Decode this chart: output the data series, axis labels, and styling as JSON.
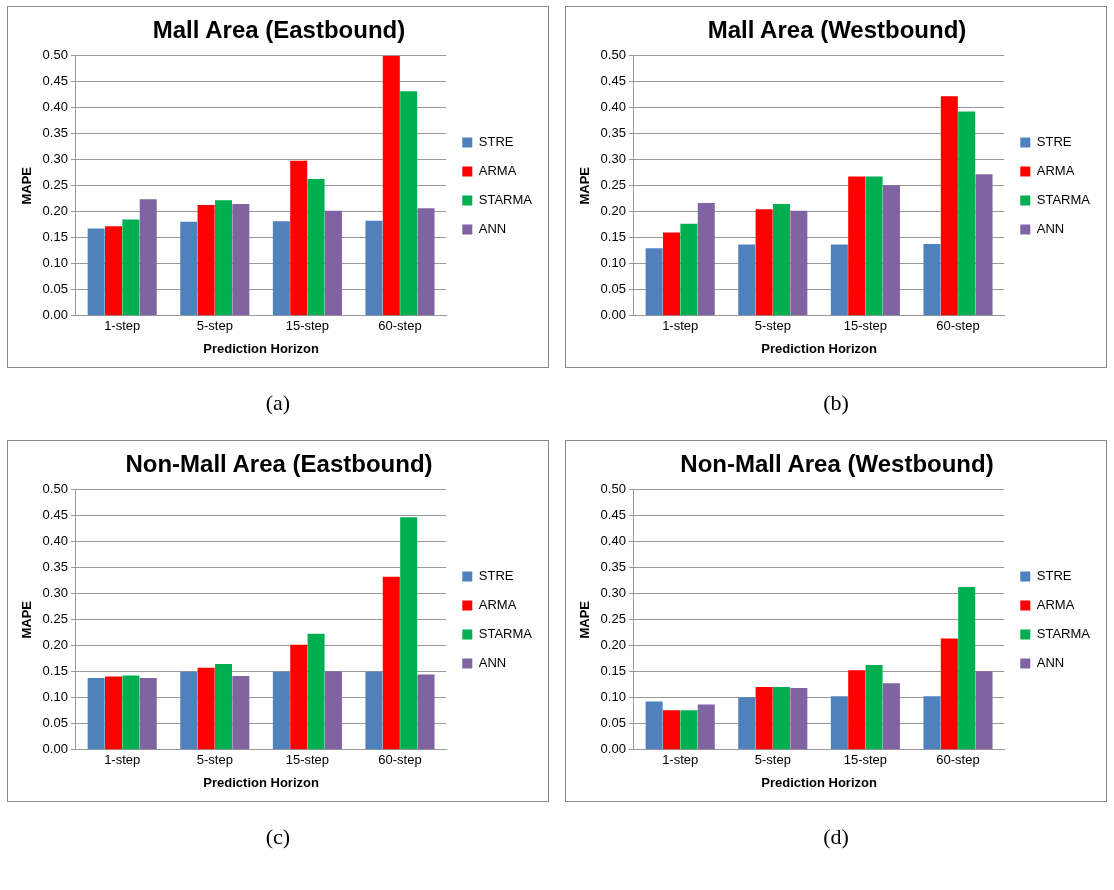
{
  "chart_data": [
    {
      "type": "bar",
      "title": "Mall Area (Eastbound)",
      "xlabel": "Prediction Horizon",
      "ylabel": "MAPE",
      "categories": [
        "1-step",
        "5-step",
        "15-step",
        "60-step"
      ],
      "series": [
        {
          "name": "STRE",
          "color": "#4f81bd",
          "values": [
            0.168,
            0.181,
            0.182,
            0.183
          ]
        },
        {
          "name": "ARMA",
          "color": "#ff0000",
          "values": [
            0.172,
            0.213,
            0.298,
            0.5
          ]
        },
        {
          "name": "STARMA",
          "color": "#00b050",
          "values": [
            0.185,
            0.222,
            0.263,
            0.432
          ]
        },
        {
          "name": "ANN",
          "color": "#8064a2",
          "values": [
            0.224,
            0.215,
            0.202,
            0.207
          ]
        }
      ],
      "ylim": [
        0,
        0.5
      ],
      "yticks": [
        {
          "value": 0,
          "label": "0.00"
        },
        {
          "value": 0.05,
          "label": "0.05"
        },
        {
          "value": 0.1,
          "label": "0.10"
        },
        {
          "value": 0.15,
          "label": "0.15"
        },
        {
          "value": 0.2,
          "label": "0.20"
        },
        {
          "value": 0.25,
          "label": "0.25"
        },
        {
          "value": 0.3,
          "label": "0.30"
        },
        {
          "value": 0.35,
          "label": "0.35"
        },
        {
          "value": 0.4,
          "label": "0.40"
        },
        {
          "value": 0.45,
          "label": "0.45"
        },
        {
          "value": 0.5,
          "label": "0.50"
        }
      ],
      "grid": "y",
      "legend": "right",
      "annotations": [
        "(a)"
      ]
    },
    {
      "type": "bar",
      "title": "Mall Area (Westbound)",
      "xlabel": "Prediction Horizon",
      "ylabel": "MAPE",
      "categories": [
        "1-step",
        "5-step",
        "15-step",
        "60-step"
      ],
      "series": [
        {
          "name": "STRE",
          "color": "#4f81bd",
          "values": [
            0.13,
            0.137,
            0.137,
            0.138
          ]
        },
        {
          "name": "ARMA",
          "color": "#ff0000",
          "values": [
            0.16,
            0.205,
            0.268,
            0.422
          ]
        },
        {
          "name": "STARMA",
          "color": "#00b050",
          "values": [
            0.177,
            0.215,
            0.268,
            0.393
          ]
        },
        {
          "name": "ANN",
          "color": "#8064a2",
          "values": [
            0.217,
            0.202,
            0.251,
            0.272
          ]
        }
      ],
      "ylim": [
        0,
        0.5
      ],
      "yticks": [
        {
          "value": 0,
          "label": "0.00"
        },
        {
          "value": 0.05,
          "label": "0.05"
        },
        {
          "value": 0.1,
          "label": "0.10"
        },
        {
          "value": 0.15,
          "label": "0.15"
        },
        {
          "value": 0.2,
          "label": "0.20"
        },
        {
          "value": 0.25,
          "label": "0.25"
        },
        {
          "value": 0.3,
          "label": "0.30"
        },
        {
          "value": 0.35,
          "label": "0.35"
        },
        {
          "value": 0.4,
          "label": "0.40"
        },
        {
          "value": 0.45,
          "label": "0.45"
        },
        {
          "value": 0.5,
          "label": "0.50"
        }
      ],
      "grid": "y",
      "legend": "right",
      "annotations": [
        "(b)"
      ]
    },
    {
      "type": "bar",
      "title": "Non-Mall Area (Eastbound)",
      "xlabel": "Prediction Horizon",
      "ylabel": "MAPE",
      "categories": [
        "1-step",
        "5-step",
        "15-step",
        "60-step"
      ],
      "series": [
        {
          "name": "STRE",
          "color": "#4f81bd",
          "values": [
            0.138,
            0.15,
            0.15,
            0.15
          ]
        },
        {
          "name": "ARMA",
          "color": "#ff0000",
          "values": [
            0.141,
            0.158,
            0.202,
            0.333
          ]
        },
        {
          "name": "STARMA",
          "color": "#00b050",
          "values": [
            0.143,
            0.165,
            0.223,
            0.447
          ]
        },
        {
          "name": "ANN",
          "color": "#8064a2",
          "values": [
            0.138,
            0.142,
            0.151,
            0.145
          ]
        }
      ],
      "ylim": [
        0,
        0.5
      ],
      "yticks": [
        {
          "value": 0,
          "label": "0.00"
        },
        {
          "value": 0.05,
          "label": "0.05"
        },
        {
          "value": 0.1,
          "label": "0.10"
        },
        {
          "value": 0.15,
          "label": "0.15"
        },
        {
          "value": 0.2,
          "label": "0.20"
        },
        {
          "value": 0.25,
          "label": "0.25"
        },
        {
          "value": 0.3,
          "label": "0.30"
        },
        {
          "value": 0.35,
          "label": "0.35"
        },
        {
          "value": 0.4,
          "label": "0.40"
        },
        {
          "value": 0.45,
          "label": "0.45"
        },
        {
          "value": 0.5,
          "label": "0.50"
        }
      ],
      "grid": "y",
      "legend": "right",
      "annotations": [
        "(c)"
      ]
    },
    {
      "type": "bar",
      "title": "Non-Mall Area (Westbound)",
      "xlabel": "Prediction Horizon",
      "ylabel": "MAPE",
      "categories": [
        "1-step",
        "5-step",
        "15-step",
        "60-step"
      ],
      "series": [
        {
          "name": "STRE",
          "color": "#4f81bd",
          "values": [
            0.093,
            0.101,
            0.103,
            0.103
          ]
        },
        {
          "name": "ARMA",
          "color": "#ff0000",
          "values": [
            0.076,
            0.121,
            0.153,
            0.214
          ]
        },
        {
          "name": "STARMA",
          "color": "#00b050",
          "values": [
            0.076,
            0.121,
            0.163,
            0.313
          ]
        },
        {
          "name": "ANN",
          "color": "#8064a2",
          "values": [
            0.087,
            0.119,
            0.128,
            0.151
          ]
        }
      ],
      "ylim": [
        0,
        0.5
      ],
      "yticks": [
        {
          "value": 0,
          "label": "0.00"
        },
        {
          "value": 0.05,
          "label": "0.05"
        },
        {
          "value": 0.1,
          "label": "0.10"
        },
        {
          "value": 0.15,
          "label": "0.15"
        },
        {
          "value": 0.2,
          "label": "0.20"
        },
        {
          "value": 0.25,
          "label": "0.25"
        },
        {
          "value": 0.3,
          "label": "0.30"
        },
        {
          "value": 0.35,
          "label": "0.35"
        },
        {
          "value": 0.4,
          "label": "0.40"
        },
        {
          "value": 0.45,
          "label": "0.45"
        },
        {
          "value": 0.5,
          "label": "0.50"
        }
      ],
      "grid": "y",
      "legend": "right",
      "annotations": [
        "(d)"
      ]
    }
  ]
}
